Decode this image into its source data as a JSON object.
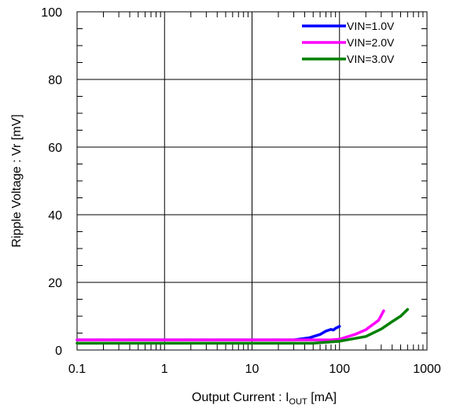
{
  "chart_data": {
    "type": "line",
    "xscale": "log",
    "xlim": [
      0.1,
      1000
    ],
    "ylim": [
      0,
      100
    ],
    "grid": true,
    "legend_position": "top-right",
    "x_ticks": [
      "0.1",
      "1",
      "10",
      "100",
      "1000"
    ],
    "y_ticks": [
      "0",
      "20",
      "40",
      "60",
      "80",
      "100"
    ],
    "xlabel": {
      "main": "Output  Current : I",
      "sub": "OUT",
      "tail": "  [mA]"
    },
    "ylabel": "Ripple Voltage : Vr [mV]",
    "series": [
      {
        "name": "VIN=1.0V",
        "color": "#0000ff",
        "points": [
          [
            0.1,
            3
          ],
          [
            1,
            3
          ],
          [
            10,
            3
          ],
          [
            30,
            3
          ],
          [
            45,
            3.6
          ],
          [
            60,
            4.6
          ],
          [
            70,
            5.6
          ],
          [
            80,
            6.1
          ],
          [
            85,
            5.9
          ],
          [
            90,
            6.4
          ],
          [
            100,
            7
          ]
        ]
      },
      {
        "name": "VIN=2.0V",
        "color": "#ff00ff",
        "points": [
          [
            0.1,
            3
          ],
          [
            1,
            3
          ],
          [
            10,
            3
          ],
          [
            50,
            3
          ],
          [
            80,
            3
          ],
          [
            100,
            3.2
          ],
          [
            150,
            4.6
          ],
          [
            200,
            6
          ],
          [
            280,
            8.8
          ],
          [
            320,
            11.6
          ]
        ]
      },
      {
        "name": "VIN=3.0V",
        "color": "#008000",
        "points": [
          [
            0.1,
            2
          ],
          [
            1,
            2
          ],
          [
            10,
            2
          ],
          [
            50,
            2
          ],
          [
            100,
            2.6
          ],
          [
            200,
            4
          ],
          [
            300,
            6.2
          ],
          [
            400,
            8.4
          ],
          [
            500,
            10
          ],
          [
            600,
            12
          ]
        ]
      }
    ]
  }
}
